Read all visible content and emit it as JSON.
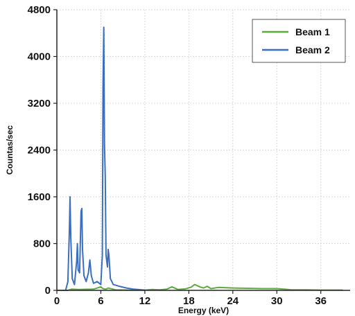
{
  "chart_data": {
    "type": "line",
    "title": "",
    "xlabel": "Energy (keV)",
    "ylabel": "Countas/sec",
    "xlim": [
      0,
      40
    ],
    "ylim": [
      0,
      4800
    ],
    "xticks": [
      0,
      6,
      12,
      18,
      24,
      30,
      36
    ],
    "yticks": [
      0,
      800,
      1600,
      2400,
      3200,
      4000,
      4800
    ],
    "grid": true,
    "legend_position": "top-right",
    "series": [
      {
        "name": "Beam 1",
        "color": "#5aaa3c",
        "points": [
          [
            0,
            0
          ],
          [
            1.5,
            0
          ],
          [
            2,
            20
          ],
          [
            3,
            15
          ],
          [
            5,
            20
          ],
          [
            6,
            60
          ],
          [
            6.3,
            30
          ],
          [
            6.7,
            20
          ],
          [
            7,
            40
          ],
          [
            8,
            10
          ],
          [
            10,
            5
          ],
          [
            12,
            5
          ],
          [
            13,
            15
          ],
          [
            14,
            10
          ],
          [
            15,
            20
          ],
          [
            15.7,
            60
          ],
          [
            16.5,
            15
          ],
          [
            17.5,
            25
          ],
          [
            18.3,
            55
          ],
          [
            18.8,
            100
          ],
          [
            19.5,
            60
          ],
          [
            20,
            40
          ],
          [
            20.5,
            70
          ],
          [
            21,
            30
          ],
          [
            22,
            50
          ],
          [
            24,
            40
          ],
          [
            26,
            35
          ],
          [
            28,
            30
          ],
          [
            30,
            30
          ],
          [
            31,
            20
          ],
          [
            32,
            10
          ],
          [
            34,
            8
          ],
          [
            36,
            5
          ],
          [
            39,
            5
          ]
        ]
      },
      {
        "name": "Beam 2",
        "color": "#3a6fbf",
        "points": [
          [
            1.2,
            0
          ],
          [
            1.5,
            150
          ],
          [
            1.7,
            1000
          ],
          [
            1.8,
            1600
          ],
          [
            1.9,
            900
          ],
          [
            2.1,
            200
          ],
          [
            2.4,
            100
          ],
          [
            2.7,
            500
          ],
          [
            2.8,
            800
          ],
          [
            2.9,
            350
          ],
          [
            3.1,
            300
          ],
          [
            3.3,
            1350
          ],
          [
            3.4,
            1400
          ],
          [
            3.5,
            700
          ],
          [
            3.7,
            250
          ],
          [
            4,
            150
          ],
          [
            4.3,
            300
          ],
          [
            4.5,
            520
          ],
          [
            4.7,
            250
          ],
          [
            5,
            120
          ],
          [
            5.5,
            150
          ],
          [
            6,
            100
          ],
          [
            6.2,
            600
          ],
          [
            6.3,
            3500
          ],
          [
            6.4,
            4500
          ],
          [
            6.5,
            2500
          ],
          [
            6.6,
            1950
          ],
          [
            6.7,
            600
          ],
          [
            6.9,
            400
          ],
          [
            7,
            700
          ],
          [
            7.1,
            600
          ],
          [
            7.3,
            200
          ],
          [
            7.7,
            100
          ],
          [
            8.5,
            70
          ],
          [
            9.5,
            40
          ],
          [
            10.5,
            20
          ],
          [
            12,
            5
          ]
        ]
      }
    ]
  }
}
